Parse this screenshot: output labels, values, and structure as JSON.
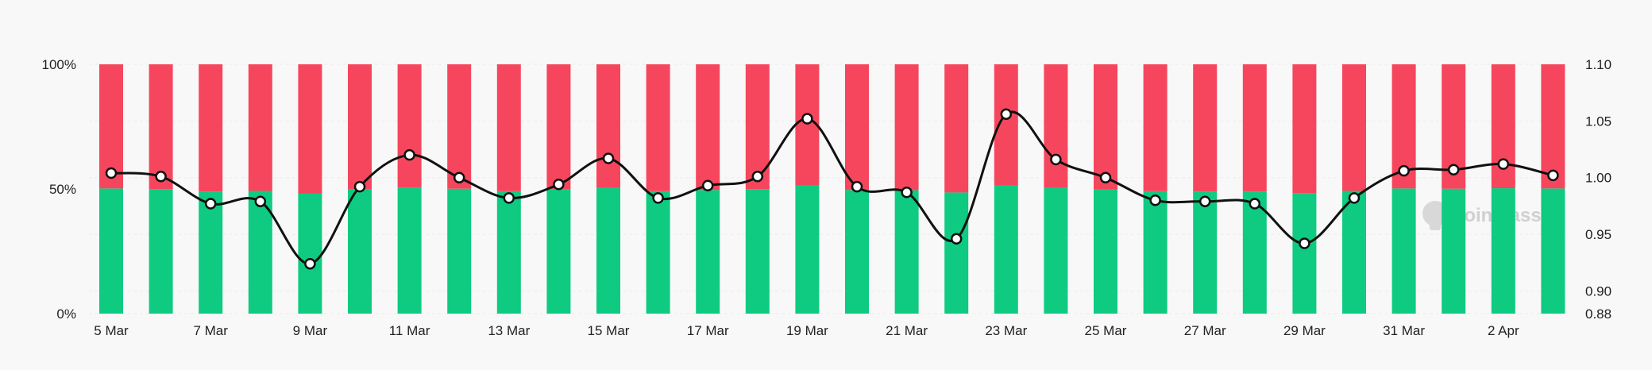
{
  "chart_data": {
    "type": "bar",
    "stacked_percent": true,
    "x": [
      "5 Mar",
      "6 Mar",
      "7 Mar",
      "8 Mar",
      "9 Mar",
      "10 Mar",
      "11 Mar",
      "12 Mar",
      "13 Mar",
      "14 Mar",
      "15 Mar",
      "16 Mar",
      "17 Mar",
      "18 Mar",
      "19 Mar",
      "20 Mar",
      "21 Mar",
      "22 Mar",
      "23 Mar",
      "24 Mar",
      "25 Mar",
      "26 Mar",
      "27 Mar",
      "28 Mar",
      "29 Mar",
      "30 Mar",
      "31 Mar",
      "1 Apr",
      "2 Apr",
      "3 Apr"
    ],
    "x_tick_labels": [
      "5 Mar",
      "7 Mar",
      "9 Mar",
      "11 Mar",
      "13 Mar",
      "15 Mar",
      "17 Mar",
      "19 Mar",
      "21 Mar",
      "23 Mar",
      "25 Mar",
      "27 Mar",
      "29 Mar",
      "31 Mar",
      "2 Apr"
    ],
    "series": [
      {
        "color": "#0ecb81",
        "axis": "left",
        "values": [
          50.2,
          49.9,
          49.0,
          49.2,
          48.1,
          49.8,
          50.6,
          50.1,
          49.1,
          49.8,
          50.5,
          49.1,
          49.6,
          49.9,
          51.3,
          49.6,
          49.5,
          48.6,
          51.3,
          50.5,
          50.0,
          49.1,
          49.0,
          49.0,
          48.3,
          49.2,
          50.2,
          50.1,
          50.3,
          50.2
        ]
      },
      {
        "color": "#f6465d",
        "axis": "left",
        "values": [
          49.8,
          50.1,
          51.0,
          50.8,
          51.9,
          50.2,
          49.4,
          49.9,
          50.9,
          50.2,
          49.5,
          50.9,
          50.4,
          50.1,
          48.7,
          50.4,
          50.5,
          51.4,
          48.7,
          49.5,
          50.0,
          50.9,
          51.0,
          51.0,
          51.7,
          50.8,
          49.8,
          49.9,
          49.7,
          49.8
        ]
      },
      {
        "type": "line",
        "color": "#111111",
        "axis": "right",
        "values": [
          1.004,
          1.001,
          0.977,
          0.979,
          0.924,
          0.992,
          1.02,
          1.0,
          0.982,
          0.994,
          1.017,
          0.982,
          0.993,
          1.001,
          1.052,
          0.992,
          0.987,
          0.946,
          1.056,
          1.016,
          1.0,
          0.98,
          0.979,
          0.977,
          0.942,
          0.982,
          1.006,
          1.007,
          1.012,
          1.002
        ]
      }
    ],
    "y_left": {
      "range": [
        0,
        100
      ],
      "ticks": [
        "0%",
        "50%",
        "100%"
      ],
      "tick_values": [
        0,
        50,
        100
      ]
    },
    "y_right": {
      "range": [
        0.88,
        1.1
      ],
      "ticks": [
        "0.88",
        "0.90",
        "0.95",
        "1.00",
        "1.05",
        "1.10"
      ],
      "tick_values": [
        0.88,
        0.9,
        0.95,
        1.0,
        1.05,
        1.1
      ]
    },
    "grid": true,
    "legend": "none",
    "watermark": "coinglass",
    "xlabel": "",
    "ylabel": "",
    "title": ""
  },
  "colors": {
    "background": "#f8f8f8",
    "grid": "#ececec",
    "text": "#222222",
    "watermark": "#d0d0d0"
  }
}
